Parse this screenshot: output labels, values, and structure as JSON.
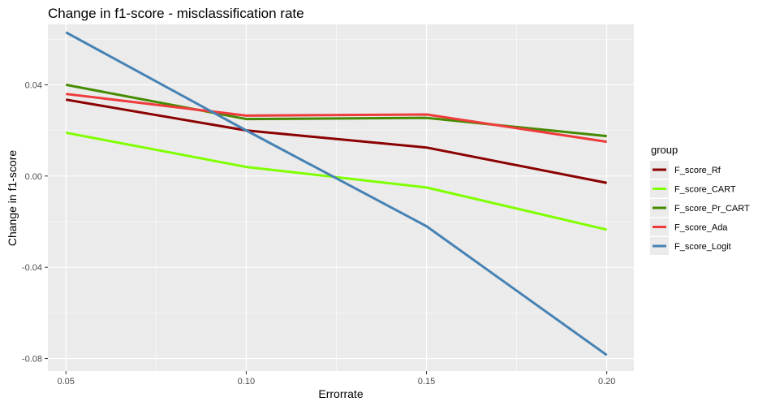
{
  "chart_data": {
    "type": "line",
    "title": "Change in f1-score - misclassification rate",
    "xlabel": "Errorrate",
    "ylabel": "Change in f1-score",
    "x": [
      0.05,
      0.1,
      0.15,
      0.2
    ],
    "xlim": [
      0.045,
      0.2075
    ],
    "ylim": [
      -0.0855,
      0.0665
    ],
    "x_ticks": [
      "0.05",
      "0.10",
      "0.15",
      "0.20"
    ],
    "y_ticks": [
      "-0.08",
      "-0.04",
      "0.00",
      "0.04"
    ],
    "grid": true,
    "legend_title": "group",
    "legend_position": "right",
    "series": [
      {
        "name": "F_score_Rf",
        "color": "#8b0000",
        "values": [
          0.0335,
          0.02,
          0.0125,
          -0.003
        ]
      },
      {
        "name": "F_score_CART",
        "color": "#7fff00",
        "values": [
          0.019,
          0.004,
          -0.005,
          -0.0235
        ]
      },
      {
        "name": "F_score_Pr_CART",
        "color": "#458b00",
        "values": [
          0.04,
          0.025,
          0.0255,
          0.0175
        ]
      },
      {
        "name": "F_score_Ada",
        "color": "#ee3b3b",
        "values": [
          0.036,
          0.0265,
          0.027,
          0.015
        ]
      },
      {
        "name": "F_score_Logit",
        "color": "#4682b4",
        "values": [
          0.063,
          0.02,
          -0.022,
          -0.0785
        ]
      }
    ]
  }
}
